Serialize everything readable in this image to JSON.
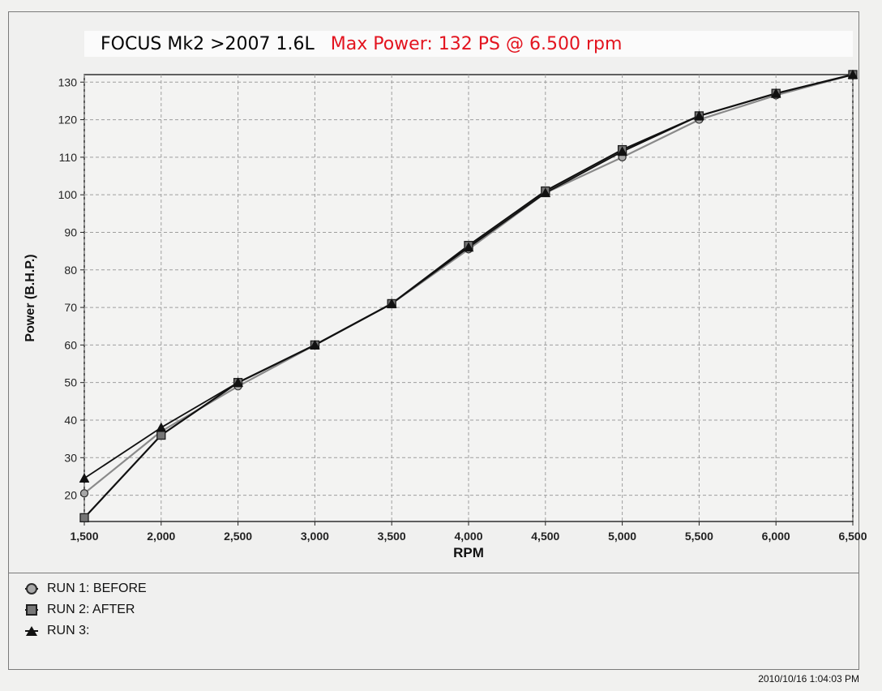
{
  "header": {
    "title": "FOCUS Mk2 >2007 1.6L",
    "subtitle": "Max Power: 132 PS @ 6.500 rpm"
  },
  "timestamp": "2010/10/16 1:04:03 PM",
  "colors": {
    "title": "#050505",
    "subtitle": "#e3141f",
    "run1": "#8a8a8a",
    "run2": "#111111",
    "run3": "#111111",
    "grid": "#9e9e9e"
  },
  "chart_data": {
    "type": "line",
    "title": "FOCUS Mk2 >2007 1.6L",
    "subtitle": "Max Power: 132 PS @ 6.500 rpm",
    "xlabel": "RPM",
    "ylabel": "Power (B.H.P.)",
    "xlim": [
      1500,
      6500
    ],
    "ylim": [
      13,
      132
    ],
    "x_ticks": [
      1500,
      2000,
      2500,
      3000,
      3500,
      4000,
      4500,
      5000,
      5500,
      6000,
      6500
    ],
    "x_tick_labels": [
      "1,500",
      "2,000",
      "2,500",
      "3,000",
      "3,500",
      "4,000",
      "4,500",
      "5,000",
      "5,500",
      "6,000",
      "6,500"
    ],
    "y_ticks": [
      20,
      30,
      40,
      50,
      60,
      70,
      80,
      90,
      100,
      110,
      120,
      130
    ],
    "y_tick_labels": [
      "20",
      "30",
      "40",
      "50",
      "60",
      "70",
      "80",
      "90",
      "100",
      "110",
      "120",
      "130"
    ],
    "grid": true,
    "x": [
      1500,
      2000,
      2500,
      3000,
      3500,
      4000,
      4500,
      5000,
      5500,
      6000,
      6500
    ],
    "series": [
      {
        "name": "RUN 1: BEFORE",
        "marker": "circle",
        "values": [
          20.5,
          37.0,
          49.0,
          60.0,
          71.0,
          85.5,
          100.5,
          110.0,
          120.0,
          126.5,
          132.0
        ]
      },
      {
        "name": "RUN 2: AFTER",
        "marker": "square",
        "values": [
          14.0,
          36.0,
          50.0,
          60.0,
          71.0,
          86.5,
          101.0,
          112.0,
          121.0,
          127.0,
          132.0
        ]
      },
      {
        "name": "RUN 3:",
        "marker": "triangle",
        "values": [
          24.5,
          38.0,
          50.0,
          60.0,
          71.0,
          86.0,
          100.5,
          111.5,
          121.0,
          127.0,
          132.0
        ]
      }
    ],
    "legend": {
      "placement": "bottom-left",
      "entries": [
        "RUN 1: BEFORE",
        "RUN 2: AFTER",
        "RUN 3:"
      ]
    }
  }
}
